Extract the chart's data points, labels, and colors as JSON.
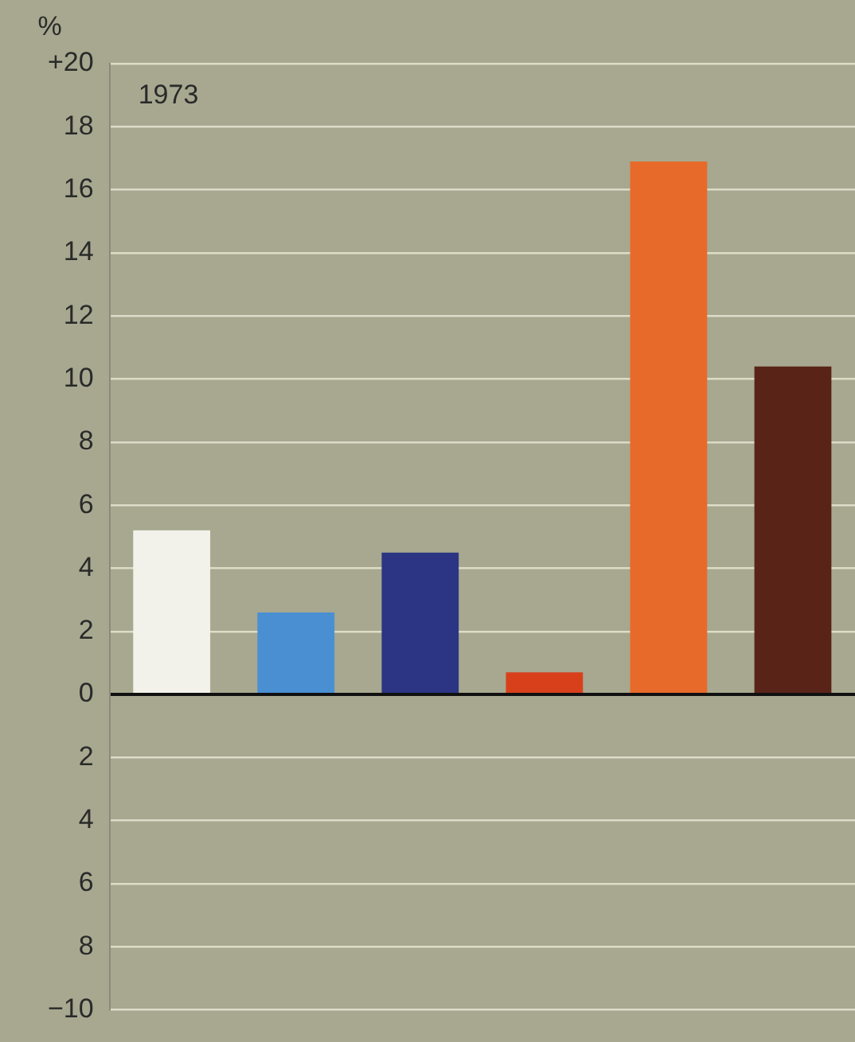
{
  "chart_data": {
    "type": "bar",
    "ylabel": "%",
    "annotations": [
      "1973"
    ],
    "categories": [
      null,
      null,
      null,
      null,
      null,
      null
    ],
    "values": [
      5.2,
      2.6,
      4.5,
      0.7,
      16.9,
      10.4
    ],
    "colors": [
      "#f2f2ea",
      "#4a8fd2",
      "#2b3583",
      "#d8401c",
      "#e86a2a",
      "#5a2318"
    ],
    "ylim": [
      -10,
      20
    ],
    "yticks": [
      {
        "value": 20,
        "label": "+20"
      },
      18,
      16,
      14,
      12,
      10,
      8,
      6,
      4,
      2,
      0,
      {
        "value": -2,
        "label": "2"
      },
      {
        "value": -4,
        "label": "4"
      },
      {
        "value": -6,
        "label": "6"
      },
      {
        "value": -8,
        "label": "8"
      },
      {
        "value": -10,
        "label": "−10"
      }
    ],
    "grid": "y",
    "legend": false
  }
}
